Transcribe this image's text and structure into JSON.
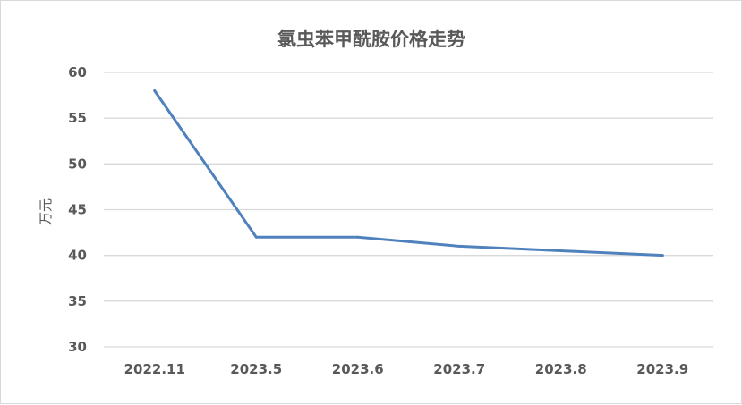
{
  "chart_data": {
    "type": "line",
    "title": "氯虫苯甲酰胺价格走势",
    "xlabel": "",
    "ylabel": "万元",
    "categories": [
      "2022.11",
      "2023.5",
      "2023.6",
      "2023.7",
      "2023.8",
      "2023.9"
    ],
    "series": [
      {
        "values": [
          58,
          42,
          42,
          41,
          40.5,
          40
        ],
        "color": "#4f81bd"
      }
    ],
    "ylim": [
      30,
      60
    ],
    "yticks": [
      30,
      35,
      40,
      45,
      50,
      55,
      60
    ],
    "grid": true,
    "legend": "none"
  }
}
